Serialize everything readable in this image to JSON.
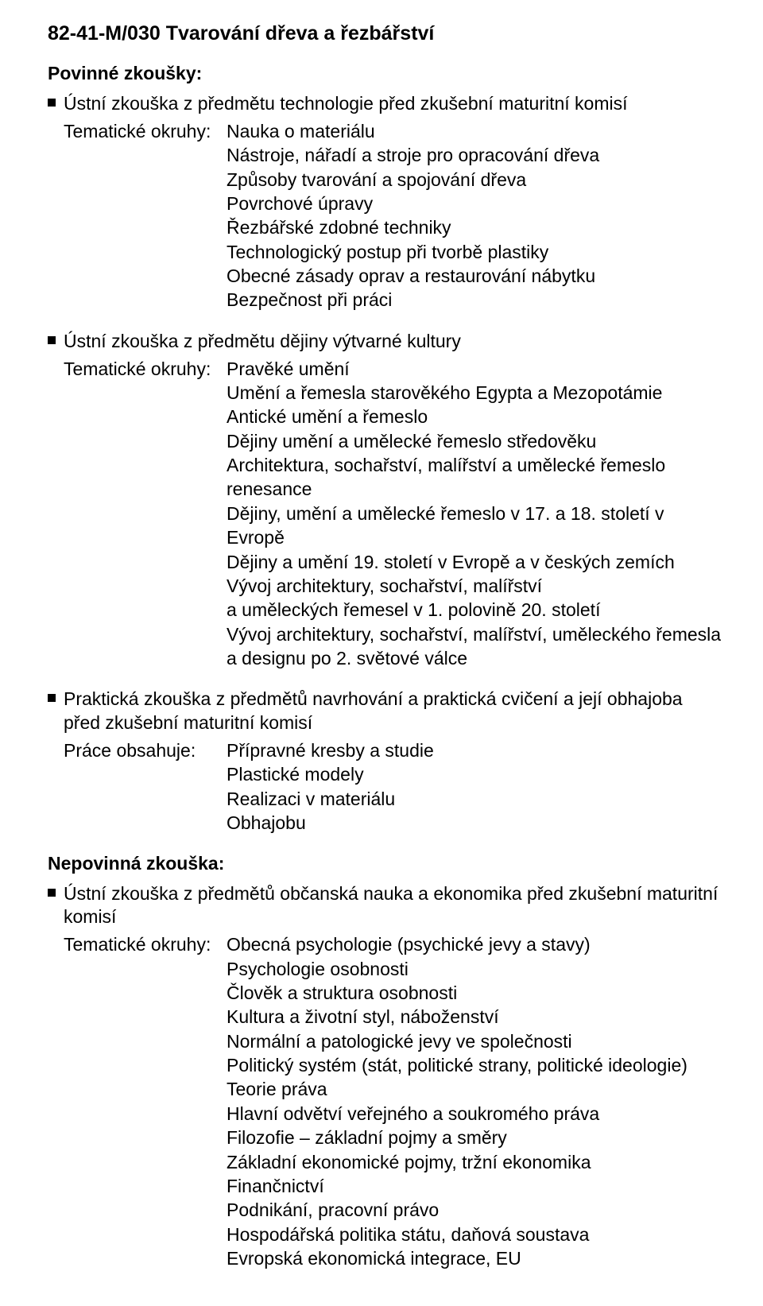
{
  "title": "82-41-M/030 Tvarování dřeva a řezbářství",
  "mandatory_heading": "Povinné zkoušky:",
  "optional_heading": "Nepovinná zkouška:",
  "label_topics": "Tematické okruhy:",
  "label_work": "Práce obsahuje:",
  "exam1": {
    "title": "Ústní zkouška z předmětu technologie před zkušební maturitní komisí",
    "topics": [
      "Nauka o materiálu",
      "Nástroje, nářadí a stroje pro opracování dřeva",
      "Způsoby tvarování a spojování dřeva",
      "Povrchové úpravy",
      "Řezbářské zdobné techniky",
      "Technologický postup při tvorbě plastiky",
      "Obecné zásady oprav a restaurování nábytku",
      "Bezpečnost při práci"
    ]
  },
  "exam2": {
    "title": "Ústní zkouška z předmětu dějiny výtvarné kultury",
    "topics": [
      "Pravěké umění",
      "Umění a řemesla starověkého Egypta a Mezopotámie",
      "Antické umění a řemeslo",
      "Dějiny umění a umělecké řemeslo středověku",
      "Architektura, sochařství, malířství a umělecké řemeslo renesance",
      "Dějiny, umění a umělecké řemeslo v 17. a 18. století v Evropě",
      "Dějiny a umění 19. století v Evropě a v českých zemích",
      "Vývoj architektury, sochařství, malířství",
      "a uměleckých řemesel v 1. polovině 20. století",
      "Vývoj architektury, sochařství, malířství, uměleckého řemesla",
      "a designu po 2. světové válce"
    ]
  },
  "exam3": {
    "title": "Praktická zkouška z předmětů navrhování a praktická cvičení a její obhajoba před zkušební maturitní komisí",
    "work": [
      "Přípravné kresby a studie",
      "Plastické modely",
      "Realizaci v materiálu",
      "Obhajobu"
    ]
  },
  "exam4": {
    "title": "Ústní zkouška z předmětů občanská nauka a ekonomika před zkušební maturitní komisí",
    "topics": [
      "Obecná psychologie (psychické jevy a stavy)",
      "Psychologie osobnosti",
      "Člověk a struktura osobnosti",
      "Kultura a životní styl, náboženství",
      "Normální a patologické jevy ve společnosti",
      "Politický systém (stát, politické strany, politické ideologie)",
      "Teorie práva",
      "Hlavní odvětví veřejného a soukromého práva",
      "Filozofie – základní pojmy a směry",
      "Základní ekonomické pojmy, tržní ekonomika",
      "Finančnictví",
      "Podnikání, pracovní právo",
      "Hospodářská politika státu, daňová soustava",
      "Evropská ekonomická integrace, EU"
    ]
  }
}
